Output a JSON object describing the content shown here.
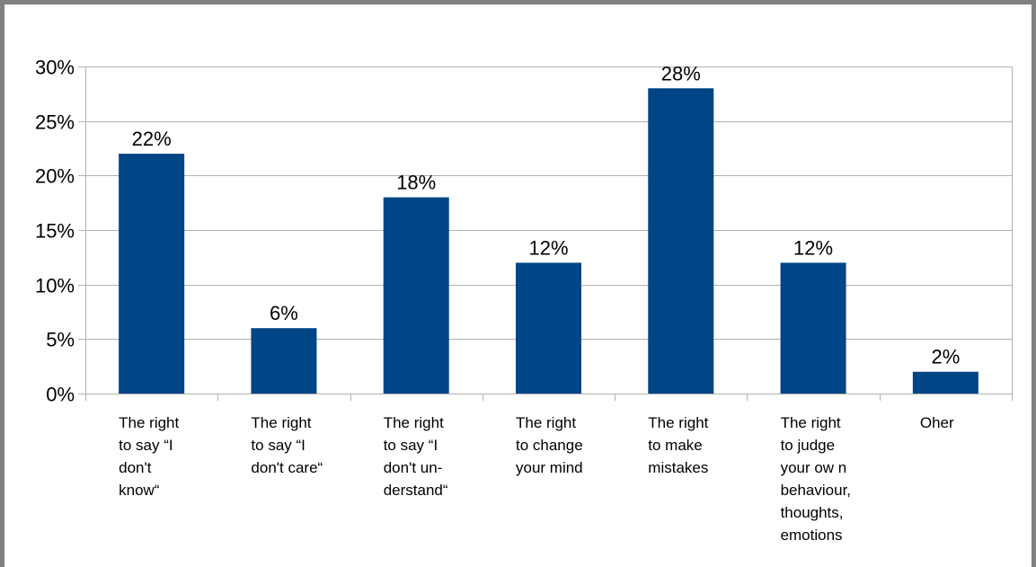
{
  "chart_data": {
    "type": "bar",
    "categories": [
      [
        "The right",
        "to say “I",
        "don't",
        "know“"
      ],
      [
        "The right",
        "to say “I",
        "don't care“"
      ],
      [
        "The right",
        "to say “I",
        "don't un-",
        "derstand“"
      ],
      [
        "The right",
        "to change",
        "your mind"
      ],
      [
        "The right",
        "to make",
        "mistakes"
      ],
      [
        "The right",
        "to judge",
        "your ow n",
        "behaviour,",
        "thoughts,",
        "emotions"
      ],
      [
        "Oher"
      ]
    ],
    "values": [
      22,
      6,
      18,
      12,
      28,
      12,
      2
    ],
    "value_labels": [
      "22%",
      "6%",
      "18%",
      "12%",
      "28%",
      "12%",
      "2%"
    ],
    "y_ticks": [
      {
        "value": 0,
        "label": "0%"
      },
      {
        "value": 5,
        "label": "5%"
      },
      {
        "value": 10,
        "label": "10%"
      },
      {
        "value": 15,
        "label": "15%"
      },
      {
        "value": 20,
        "label": "20%"
      },
      {
        "value": 25,
        "label": "25%"
      },
      {
        "value": 30,
        "label": "30%"
      }
    ],
    "ylim": [
      0,
      30
    ],
    "grid": true,
    "legend": "none",
    "title": "",
    "xlabel": "",
    "ylabel": "",
    "colors": {
      "bar": "#004586",
      "grid": "#b3b3b3",
      "axis": "#b3b3b3",
      "frame": "#808080"
    }
  }
}
